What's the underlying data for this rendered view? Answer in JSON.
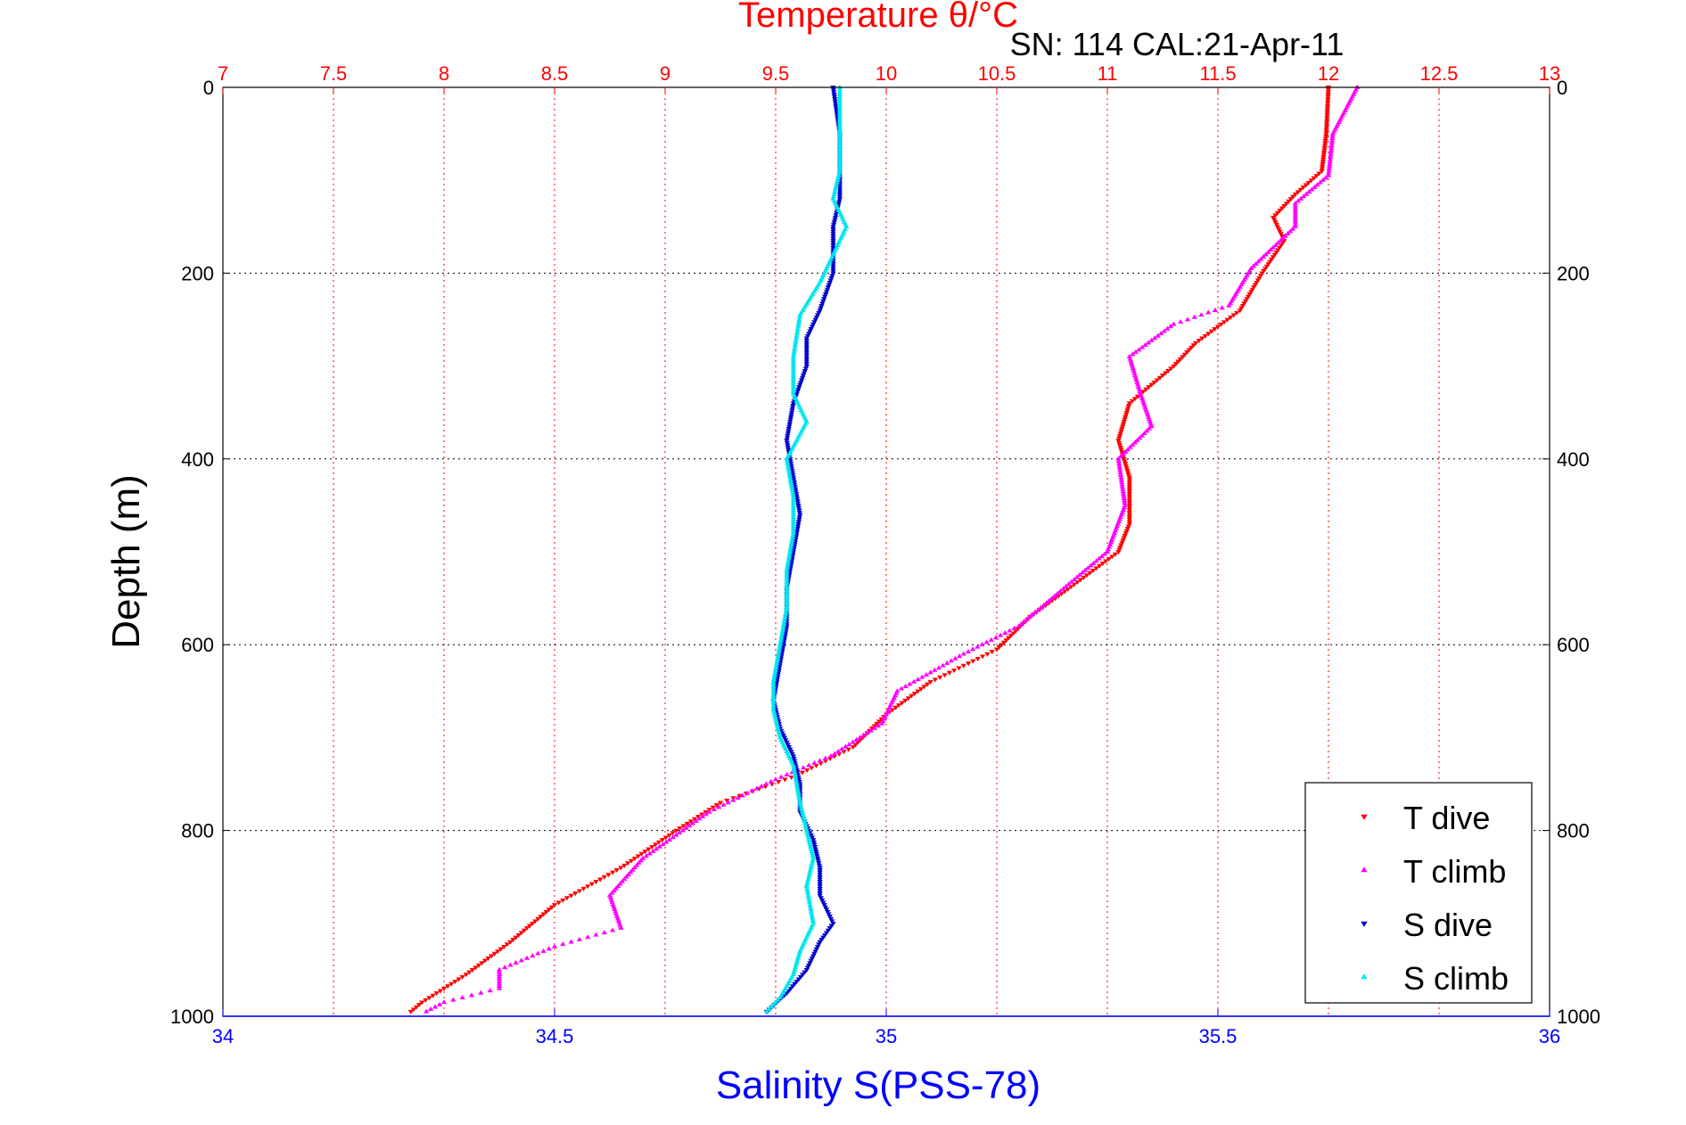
{
  "chart_data": {
    "type": "scatter",
    "title": "Temperature θ/°C",
    "subtitle": "SN: 114  CAL:21-Apr-11",
    "xlabel": "Salinity S(PSS-78)",
    "ylabel": "Depth (m)",
    "x_bottom": {
      "label": "Salinity S(PSS-78)",
      "range": [
        34,
        36
      ],
      "ticks": [
        34,
        34.5,
        35,
        35.5,
        36
      ],
      "tick_labels": [
        "34",
        "34.5",
        "35",
        "35.5",
        "36"
      ],
      "color": "#0000ff"
    },
    "x_top": {
      "label": "Temperature θ/°C",
      "range": [
        7,
        13
      ],
      "ticks": [
        7,
        7.5,
        8,
        8.5,
        9,
        9.5,
        10,
        10.5,
        11,
        11.5,
        12,
        12.5,
        13
      ],
      "tick_labels": [
        "7",
        "7.5",
        "8",
        "8.5",
        "9",
        "9.5",
        "10",
        "10.5",
        "11",
        "11.5",
        "12",
        "12.5",
        "13"
      ],
      "color": "#ff0000"
    },
    "y": {
      "label": "Depth (m)",
      "range": [
        0,
        1000
      ],
      "reversed": true,
      "ticks": [
        0,
        200,
        400,
        600,
        800,
        1000
      ],
      "tick_labels": [
        "0",
        "200",
        "400",
        "600",
        "800",
        "1000"
      ]
    },
    "grid": true,
    "legend_position": "bottom-right",
    "series": [
      {
        "name": "T dive",
        "axis": "top",
        "color": "#ff0000",
        "marker": "down-triangle",
        "points": [
          [
            12.0,
            0
          ],
          [
            11.99,
            50
          ],
          [
            11.97,
            90
          ],
          [
            11.85,
            115
          ],
          [
            11.75,
            140
          ],
          [
            11.8,
            165
          ],
          [
            11.7,
            200
          ],
          [
            11.6,
            240
          ],
          [
            11.4,
            275
          ],
          [
            11.3,
            300
          ],
          [
            11.1,
            340
          ],
          [
            11.05,
            380
          ],
          [
            11.1,
            420
          ],
          [
            11.1,
            470
          ],
          [
            11.05,
            500
          ],
          [
            10.85,
            535
          ],
          [
            10.65,
            570
          ],
          [
            10.5,
            605
          ],
          [
            10.2,
            640
          ],
          [
            10.0,
            675
          ],
          [
            9.85,
            710
          ],
          [
            9.6,
            740
          ],
          [
            9.25,
            770
          ],
          [
            9.05,
            800
          ],
          [
            8.8,
            840
          ],
          [
            8.5,
            880
          ],
          [
            8.3,
            920
          ],
          [
            8.1,
            955
          ],
          [
            7.9,
            985
          ],
          [
            7.85,
            995
          ]
        ]
      },
      {
        "name": "T climb",
        "axis": "top",
        "color": "#ff00ff",
        "marker": "up-triangle",
        "points": [
          [
            12.13,
            0
          ],
          [
            12.02,
            50
          ],
          [
            12.0,
            95
          ],
          [
            11.85,
            125
          ],
          [
            11.85,
            150
          ],
          [
            11.65,
            195
          ],
          [
            11.55,
            235
          ],
          [
            11.3,
            255
          ],
          [
            11.1,
            290
          ],
          [
            11.15,
            330
          ],
          [
            11.2,
            365
          ],
          [
            11.05,
            400
          ],
          [
            11.08,
            450
          ],
          [
            11.0,
            500
          ],
          [
            10.8,
            540
          ],
          [
            10.6,
            580
          ],
          [
            10.35,
            610
          ],
          [
            10.05,
            650
          ],
          [
            9.98,
            685
          ],
          [
            9.75,
            720
          ],
          [
            9.5,
            745
          ],
          [
            9.2,
            780
          ],
          [
            8.9,
            830
          ],
          [
            8.75,
            870
          ],
          [
            8.8,
            905
          ],
          [
            8.5,
            925
          ],
          [
            8.25,
            950
          ],
          [
            8.25,
            970
          ],
          [
            8.0,
            985
          ],
          [
            7.92,
            995
          ]
        ]
      },
      {
        "name": "S dive",
        "axis": "bottom",
        "color": "#0000cc",
        "marker": "down-triangle",
        "points": [
          [
            34.92,
            0
          ],
          [
            34.93,
            50
          ],
          [
            34.93,
            90
          ],
          [
            34.93,
            120
          ],
          [
            34.92,
            150
          ],
          [
            34.92,
            200
          ],
          [
            34.9,
            240
          ],
          [
            34.88,
            270
          ],
          [
            34.88,
            300
          ],
          [
            34.86,
            340
          ],
          [
            34.85,
            380
          ],
          [
            34.86,
            420
          ],
          [
            34.87,
            460
          ],
          [
            34.86,
            500
          ],
          [
            34.85,
            540
          ],
          [
            34.85,
            580
          ],
          [
            34.84,
            620
          ],
          [
            34.83,
            660
          ],
          [
            34.84,
            690
          ],
          [
            34.86,
            720
          ],
          [
            34.87,
            750
          ],
          [
            34.87,
            780
          ],
          [
            34.89,
            810
          ],
          [
            34.9,
            840
          ],
          [
            34.9,
            870
          ],
          [
            34.92,
            900
          ],
          [
            34.9,
            920
          ],
          [
            34.88,
            950
          ],
          [
            34.85,
            975
          ],
          [
            34.82,
            995
          ]
        ]
      },
      {
        "name": "S climb",
        "axis": "bottom",
        "color": "#00e5ee",
        "marker": "up-triangle",
        "points": [
          [
            34.93,
            0
          ],
          [
            34.93,
            50
          ],
          [
            34.93,
            90
          ],
          [
            34.92,
            120
          ],
          [
            34.94,
            150
          ],
          [
            34.92,
            180
          ],
          [
            34.9,
            210
          ],
          [
            34.87,
            245
          ],
          [
            34.86,
            290
          ],
          [
            34.86,
            330
          ],
          [
            34.88,
            360
          ],
          [
            34.85,
            400
          ],
          [
            34.86,
            440
          ],
          [
            34.86,
            480
          ],
          [
            34.85,
            520
          ],
          [
            34.85,
            560
          ],
          [
            34.84,
            600
          ],
          [
            34.83,
            640
          ],
          [
            34.83,
            670
          ],
          [
            34.84,
            700
          ],
          [
            34.86,
            730
          ],
          [
            34.87,
            770
          ],
          [
            34.88,
            800
          ],
          [
            34.89,
            830
          ],
          [
            34.88,
            860
          ],
          [
            34.89,
            900
          ],
          [
            34.87,
            930
          ],
          [
            34.86,
            955
          ],
          [
            34.84,
            980
          ],
          [
            34.82,
            995
          ]
        ]
      }
    ]
  }
}
